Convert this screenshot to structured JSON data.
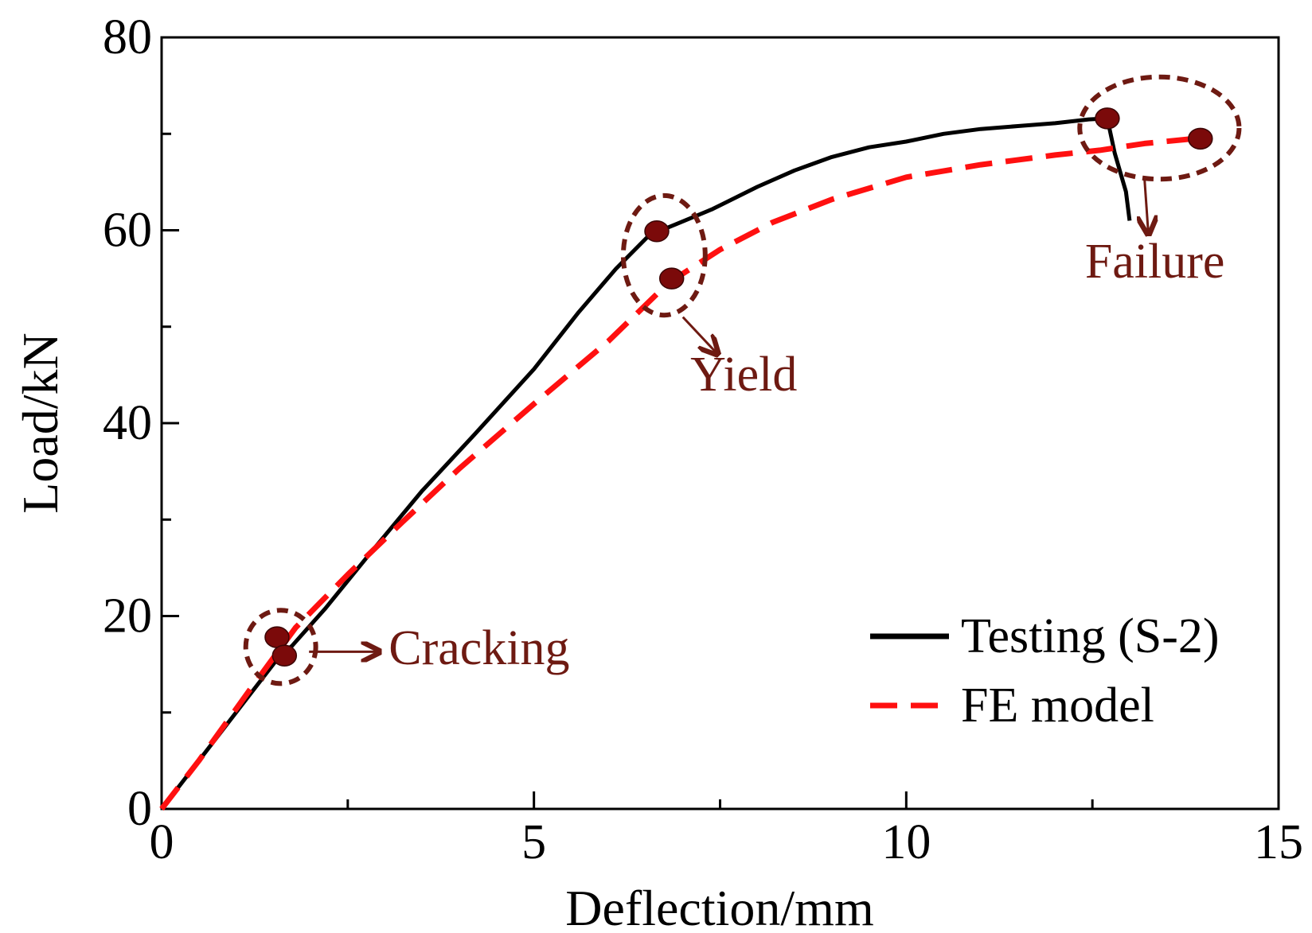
{
  "chart_data": {
    "type": "line",
    "xlabel": "Deflection/mm",
    "ylabel": "Load/kN",
    "xlim": [
      0,
      15
    ],
    "ylim": [
      0,
      80
    ],
    "x_ticks": [
      0,
      5,
      10,
      15
    ],
    "y_ticks": [
      0,
      20,
      40,
      60,
      80
    ],
    "grid": false,
    "legend_position": "bottom-right",
    "colors": {
      "marker": "#7b0a0a",
      "annotation": "#6e1a12",
      "test": "#000000",
      "fe": "#ff1010"
    },
    "series": [
      {
        "name": "Testing (S-2)",
        "style": "solid",
        "color": "#000000",
        "points": [
          [
            0,
            0
          ],
          [
            0.6,
            6
          ],
          [
            1.2,
            12
          ],
          [
            1.6,
            16
          ],
          [
            1.75,
            16.9
          ],
          [
            2.2,
            20.8
          ],
          [
            2.8,
            26.5
          ],
          [
            3.5,
            33
          ],
          [
            4.2,
            38.8
          ],
          [
            5,
            45.6
          ],
          [
            5.6,
            51.5
          ],
          [
            6.1,
            56
          ],
          [
            6.55,
            59.5
          ],
          [
            6.9,
            60.6
          ],
          [
            7.4,
            62.2
          ],
          [
            8,
            64.5
          ],
          [
            8.5,
            66.2
          ],
          [
            9,
            67.6
          ],
          [
            9.5,
            68.6
          ],
          [
            10,
            69.2
          ],
          [
            10.5,
            70
          ],
          [
            11,
            70.5
          ],
          [
            11.5,
            70.8
          ],
          [
            12,
            71.1
          ],
          [
            12.45,
            71.5
          ],
          [
            12.7,
            71.6
          ],
          [
            12.8,
            68
          ],
          [
            12.95,
            64
          ],
          [
            13,
            61
          ]
        ]
      },
      {
        "name": "FE model",
        "style": "dashed",
        "color": "#ff1010",
        "points": [
          [
            0,
            0
          ],
          [
            0.5,
            5
          ],
          [
            1.2,
            12.5
          ],
          [
            1.8,
            18.8
          ],
          [
            2.5,
            24.3
          ],
          [
            3.2,
            29.5
          ],
          [
            4,
            35.3
          ],
          [
            5,
            42
          ],
          [
            6,
            48.5
          ],
          [
            6.8,
            54.5
          ],
          [
            7.5,
            58
          ],
          [
            8.2,
            60.8
          ],
          [
            9,
            63.2
          ],
          [
            10,
            65.5
          ],
          [
            11,
            66.8
          ],
          [
            12,
            67.8
          ],
          [
            12.6,
            68.3
          ],
          [
            13.2,
            69
          ],
          [
            14,
            69.6
          ]
        ]
      }
    ],
    "key_points": [
      {
        "series": "Testing (S-2)",
        "x": 1.55,
        "y": 17.8
      },
      {
        "series": "FE model",
        "x": 1.65,
        "y": 15.9
      },
      {
        "series": "Testing (S-2)",
        "x": 6.65,
        "y": 59.9
      },
      {
        "series": "FE model",
        "x": 6.85,
        "y": 55.0
      },
      {
        "series": "Testing (S-2)",
        "x": 12.7,
        "y": 71.6
      },
      {
        "series": "FE model",
        "x": 13.95,
        "y": 69.5
      }
    ],
    "annotations": [
      {
        "label": "Cracking",
        "center": [
          1.6,
          16.8
        ],
        "radius": [
          0.47,
          3.8
        ]
      },
      {
        "label": "Yield",
        "center": [
          6.75,
          57.4
        ],
        "radius": [
          0.55,
          6.2
        ]
      },
      {
        "label": "Failure",
        "center": [
          13.4,
          70.6
        ],
        "radius": [
          1.07,
          5.3
        ]
      }
    ]
  }
}
